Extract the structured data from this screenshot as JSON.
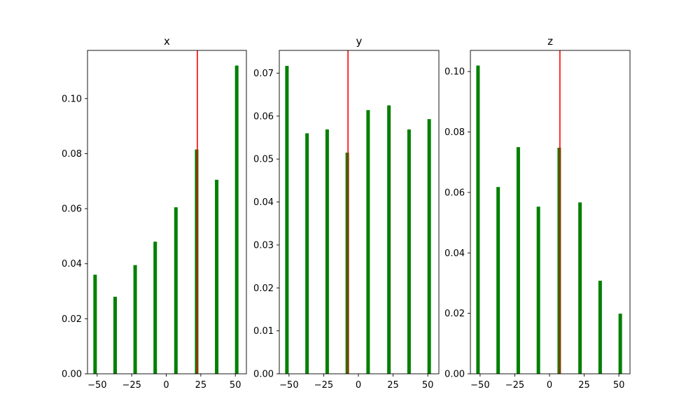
{
  "chart_data": [
    {
      "type": "bar",
      "title": "x",
      "x": [
        -51.5,
        -37,
        -22.5,
        -8,
        7,
        22,
        36.5,
        51
      ],
      "values": [
        0.036,
        0.028,
        0.0395,
        0.048,
        0.0605,
        0.0815,
        0.0705,
        0.112
      ],
      "bar_color": "#008000",
      "marker": {
        "x": 22.5,
        "color": "#ff0000"
      },
      "xlim": [
        -57,
        58
      ],
      "ylim": [
        0,
        0.1175
      ],
      "xticks": [
        -50,
        -25,
        0,
        25,
        50
      ],
      "xtick_labels": [
        "−50",
        "−25",
        "0",
        "25",
        "50"
      ],
      "yticks": [
        0,
        0.02,
        0.04,
        0.06,
        0.08,
        0.1
      ],
      "ytick_labels": [
        "0.00",
        "0.02",
        "0.04",
        "0.06",
        "0.08",
        "0.10"
      ],
      "xlabel": "",
      "ylabel": "",
      "grid": false
    },
    {
      "type": "bar",
      "title": "y",
      "x": [
        -51.5,
        -37,
        -22.5,
        -8,
        7,
        22,
        36.5,
        51
      ],
      "values": [
        0.0717,
        0.056,
        0.0569,
        0.0515,
        0.0614,
        0.0625,
        0.0569,
        0.0593
      ],
      "bar_color": "#008000",
      "marker": {
        "x": -7.5,
        "color": "#ff0000"
      },
      "xlim": [
        -57,
        58
      ],
      "ylim": [
        0,
        0.0753
      ],
      "xticks": [
        -50,
        -25,
        0,
        25,
        50
      ],
      "xtick_labels": [
        "−50",
        "−25",
        "0",
        "25",
        "50"
      ],
      "yticks": [
        0,
        0.01,
        0.02,
        0.03,
        0.04,
        0.05,
        0.06,
        0.07
      ],
      "ytick_labels": [
        "0.00",
        "0.01",
        "0.02",
        "0.03",
        "0.04",
        "0.05",
        "0.06",
        "0.07"
      ],
      "xlabel": "",
      "ylabel": "",
      "grid": false
    },
    {
      "type": "bar",
      "title": "z",
      "x": [
        -51.5,
        -37,
        -22.5,
        -8,
        7,
        22,
        36.5,
        51
      ],
      "values": [
        0.102,
        0.0618,
        0.075,
        0.0553,
        0.0748,
        0.0567,
        0.0308,
        0.0199
      ],
      "bar_color": "#008000",
      "marker": {
        "x": 7.5,
        "color": "#ff0000"
      },
      "xlim": [
        -57,
        58
      ],
      "ylim": [
        0,
        0.107
      ],
      "xticks": [
        -50,
        -25,
        0,
        25,
        50
      ],
      "xtick_labels": [
        "−50",
        "−25",
        "0",
        "25",
        "50"
      ],
      "yticks": [
        0,
        0.02,
        0.04,
        0.06,
        0.08,
        0.1
      ],
      "ytick_labels": [
        "0.00",
        "0.02",
        "0.04",
        "0.06",
        "0.08",
        "0.10"
      ],
      "xlabel": "",
      "ylabel": "",
      "grid": false
    }
  ]
}
